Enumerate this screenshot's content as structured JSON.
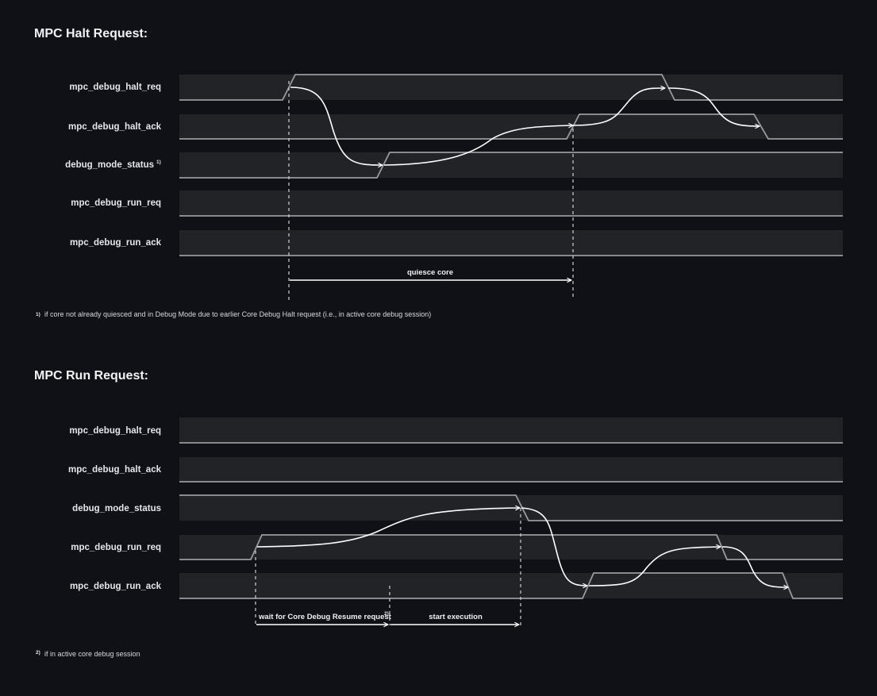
{
  "halt": {
    "title": "MPC Halt Request:",
    "signals": [
      "mpc_debug_halt_req",
      "mpc_debug_halt_ack",
      "debug_mode_status",
      "mpc_debug_run_req",
      "mpc_debug_run_ack"
    ],
    "status_superscript": "1)",
    "span_label": "quiesce core",
    "footnote_mark": "1)",
    "footnote": "if core not already quiesced and in Debug Mode due to earlier Core Debug Halt request (i.e., in active core debug session)"
  },
  "run": {
    "title": "MPC Run Request:",
    "signals": [
      "mpc_debug_halt_req",
      "mpc_debug_halt_ack",
      "debug_mode_status",
      "mpc_debug_run_req",
      "mpc_debug_run_ack"
    ],
    "span1_label": "wait for Core Debug Resume request",
    "span1_superscript": "2)",
    "span2_label": "start execution",
    "footnote_mark": "2)",
    "footnote": "if in active core debug session"
  },
  "colors": {
    "background": "#101116",
    "band": "#222327",
    "waveform": "#9a9a9e",
    "arrow": "#ffffff"
  }
}
